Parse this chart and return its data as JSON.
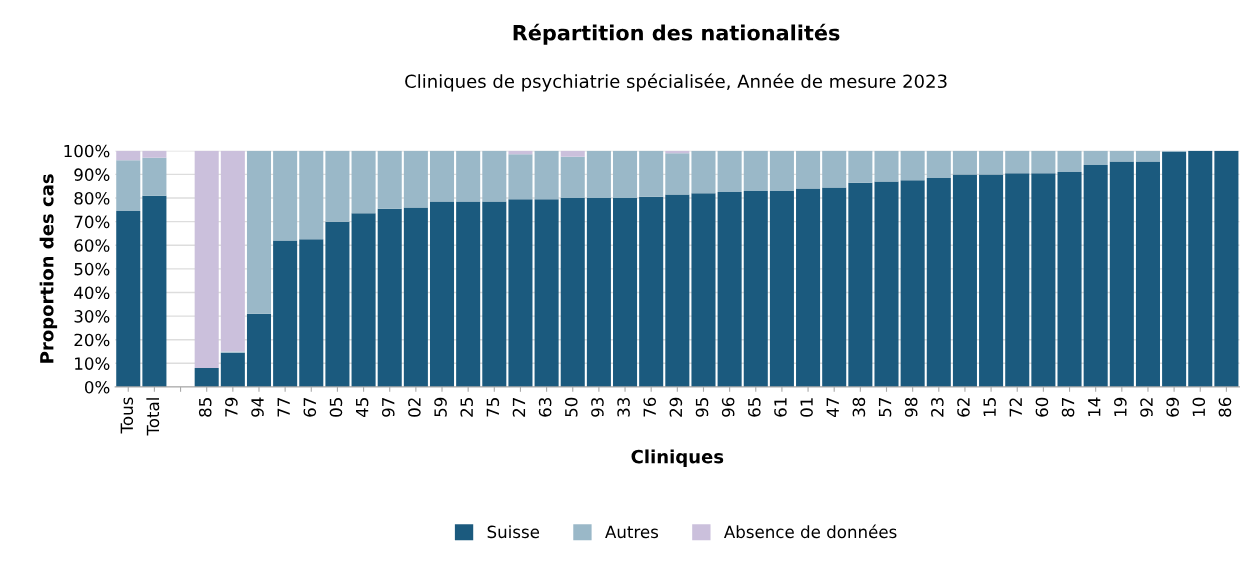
{
  "chart_data": {
    "type": "bar",
    "title": "Répartition des nationalités",
    "subtitle": "Cliniques de psychiatrie spécialisée, Année de mesure 2023",
    "xlabel": "Cliniques",
    "ylabel": "Proportion des cas",
    "categories": [
      "Tous",
      "Total",
      null,
      "85",
      "79",
      "94",
      "77",
      "67",
      "05",
      "45",
      "97",
      "02",
      "59",
      "25",
      "75",
      "27",
      "63",
      "50",
      "93",
      "33",
      "76",
      "29",
      "95",
      "96",
      "65",
      "61",
      "01",
      "47",
      "38",
      "57",
      "98",
      "23",
      "62",
      "15",
      "72",
      "60",
      "87",
      "14",
      "19",
      "92",
      "69",
      "10",
      "86"
    ],
    "stacked": true,
    "series": [
      {
        "name": "Suisse",
        "color": "#1b5a7e",
        "values": [
          74.5,
          81,
          null,
          8,
          14.5,
          31,
          62,
          62.5,
          70,
          73.5,
          75.5,
          76,
          78.5,
          78.5,
          78.5,
          79.5,
          79.5,
          80,
          80,
          80,
          80.5,
          81.5,
          82,
          82.5,
          83,
          83,
          84,
          84.5,
          86.5,
          87,
          87.5,
          88.5,
          90,
          90,
          90.5,
          90.5,
          91,
          94,
          95.5,
          95.5,
          99.5,
          100,
          100
        ]
      },
      {
        "name": "Autres",
        "color": "#9ab8c8",
        "values": [
          21.5,
          16,
          null,
          0,
          0.5,
          69,
          38,
          37.5,
          30,
          26.5,
          24.5,
          24,
          21.5,
          21.5,
          21.5,
          19,
          20.5,
          17.5,
          20,
          20,
          19.5,
          17.5,
          18,
          17.5,
          17,
          17,
          16,
          15.5,
          13.5,
          13,
          12.5,
          11.5,
          10,
          10,
          9.5,
          9.5,
          9,
          6,
          4.5,
          4.5,
          0.5,
          0,
          0
        ]
      },
      {
        "name": "Absence de données",
        "color": "#cbc0dc",
        "values": [
          4,
          3,
          null,
          92,
          85,
          0,
          0,
          0,
          0,
          0,
          0,
          0,
          0,
          0,
          0,
          1.5,
          0,
          2.5,
          0,
          0,
          0,
          1,
          0,
          0,
          0,
          0,
          0,
          0,
          0,
          0,
          0,
          0,
          0,
          0,
          0,
          0,
          0,
          0,
          0,
          0,
          0,
          0,
          0
        ]
      }
    ],
    "ylim": [
      0,
      100
    ],
    "yticks": [
      {
        "value": 0,
        "label": "0%"
      },
      {
        "value": 10,
        "label": "10%"
      },
      {
        "value": 20,
        "label": "20%"
      },
      {
        "value": 30,
        "label": "30%"
      },
      {
        "value": 40,
        "label": "40%"
      },
      {
        "value": 50,
        "label": "50%"
      },
      {
        "value": 60,
        "label": "60%"
      },
      {
        "value": 70,
        "label": "70%"
      },
      {
        "value": 80,
        "label": "80%"
      },
      {
        "value": 90,
        "label": "90%"
      },
      {
        "value": 100,
        "label": "100%"
      }
    ],
    "grid": "y",
    "legend": "bottom"
  }
}
